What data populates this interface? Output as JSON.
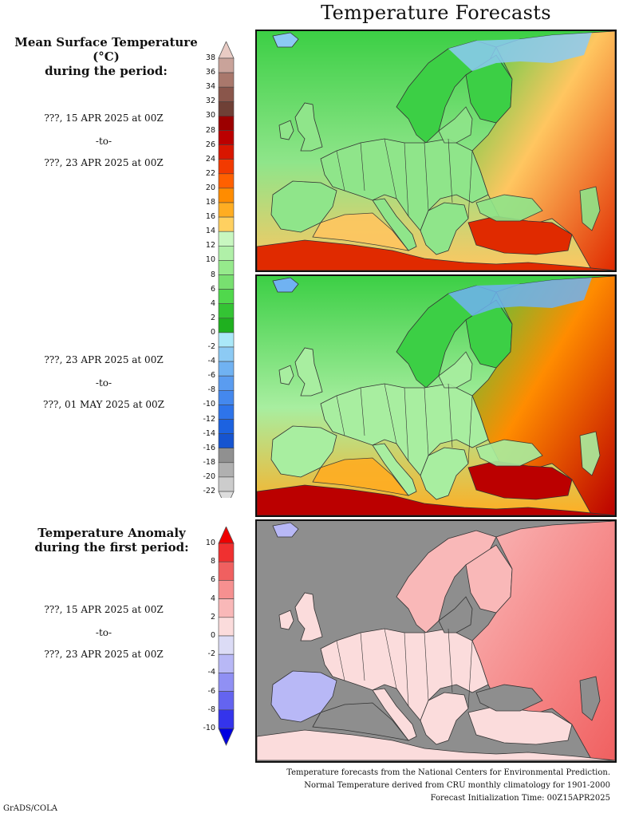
{
  "title": "Temperature Forecasts",
  "temperature_legend": {
    "heading_line1": "Mean Surface Temperature (°C)",
    "heading_line2": "during the period:",
    "ticks": [
      "38",
      "36",
      "34",
      "32",
      "30",
      "28",
      "26",
      "24",
      "22",
      "20",
      "18",
      "16",
      "14",
      "12",
      "10",
      "8",
      "6",
      "4",
      "2",
      "0",
      "-2",
      "-4",
      "-6",
      "-8",
      "-10",
      "-12",
      "-14",
      "-16",
      "-18",
      "-20",
      "-22"
    ],
    "colors": [
      "#e9cbc4",
      "#c9a39a",
      "#a9786c",
      "#8a564b",
      "#6f4036",
      "#9c0000",
      "#bb0000",
      "#d81600",
      "#f23a00",
      "#ff6000",
      "#ff8c00",
      "#ffad22",
      "#ffd060",
      "#c8f7c0",
      "#b0f0a8",
      "#96ea8c",
      "#78e070",
      "#50d84c",
      "#34c434",
      "#1fb01f",
      "#aae8f8",
      "#8ccaf4",
      "#70b2f2",
      "#5a9cf0",
      "#4488ee",
      "#2e74ea",
      "#1c62e0",
      "#1654d0",
      "#909090",
      "#b0b0b0",
      "#cccccc",
      "#dddddd"
    ]
  },
  "anomaly_legend": {
    "heading_line1": "Temperature Anomaly",
    "heading_line2": "during the first period:",
    "ticks": [
      "10",
      "8",
      "6",
      "4",
      "2",
      "0",
      "-2",
      "-4",
      "-6",
      "-8",
      "-10"
    ],
    "colors": [
      "#ee0000",
      "#f03030",
      "#f06060",
      "#f69090",
      "#f9b8b8",
      "#fbdcdc",
      "#dcdcf6",
      "#b8b8f6",
      "#9090f4",
      "#6464f0",
      "#3434ec",
      "#0000e0"
    ]
  },
  "periods": [
    {
      "start": "???, 15 APR 2025 at 00Z",
      "sep": "-to-",
      "end": "???, 23 APR 2025 at 00Z"
    },
    {
      "start": "???, 23 APR 2025 at 00Z",
      "sep": "-to-",
      "end": "???, 01 MAY 2025 at 00Z"
    },
    {
      "start": "???, 15 APR 2025 at 00Z",
      "sep": "-to-",
      "end": "???, 23 APR 2025 at 00Z"
    }
  ],
  "maps": [
    {
      "name": "temperature-map-period-1",
      "sea": "#8fe58a",
      "land_north": "#3ccf45",
      "land_south": "#ffc660",
      "east": "#ffc660",
      "hot": "#e02a00",
      "cold": "#8ccaf4"
    },
    {
      "name": "temperature-map-period-2",
      "sea": "#a8eea0",
      "land_north": "#3ccf45",
      "land_south": "#ffad22",
      "east": "#ff8c00",
      "hot": "#bb0000",
      "cold": "#70b2f2"
    },
    {
      "name": "anomaly-map-period-1",
      "sea": "#8e8e8e",
      "land_north": "#f9b8b8",
      "land_south": "#fbdcdc",
      "east": "#f69090",
      "hot": "#f06060",
      "cold": "#b8b8f6"
    }
  ],
  "footer": {
    "line1": "Temperature forecasts from the National Centers for Environmental Prediction.",
    "line2": "Normal Temperature derived from CRU monthly climatology for 1901-2000",
    "line3": "Forecast Initialization Time: 00Z15APR2025"
  },
  "credit": "GrADS/COLA"
}
